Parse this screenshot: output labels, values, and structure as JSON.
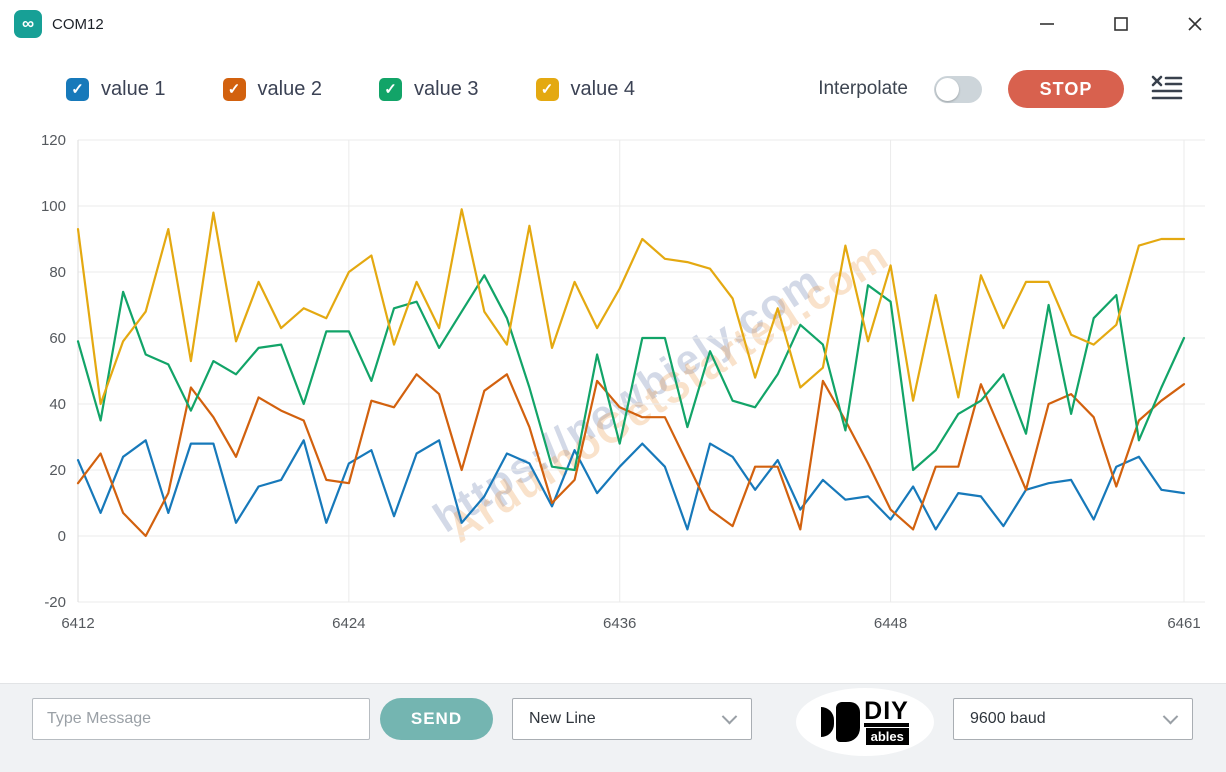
{
  "window": {
    "title": "COM12"
  },
  "toolbar": {
    "legend": [
      {
        "label": "value 1",
        "color": "#1779ba",
        "checked": true
      },
      {
        "label": "value 2",
        "color": "#d2610e",
        "checked": true
      },
      {
        "label": "value 3",
        "color": "#12a468",
        "checked": true
      },
      {
        "label": "value 4",
        "color": "#e4a911",
        "checked": true
      }
    ],
    "interpolate_label": "Interpolate",
    "interpolate_on": false,
    "stop_label": "STOP"
  },
  "chart_data": {
    "type": "line",
    "x_start": 6412,
    "x_ticks": [
      6412,
      6424,
      6436,
      6448,
      6461
    ],
    "y_ticks": [
      -20,
      0,
      20,
      40,
      60,
      80,
      100,
      120
    ],
    "ylim": [
      -20,
      120
    ],
    "grid": true,
    "legend_position": "top",
    "series": [
      {
        "name": "value 1",
        "color": "#1779ba",
        "values": [
          23,
          7,
          24,
          29,
          7,
          28,
          28,
          4,
          15,
          17,
          29,
          4,
          22,
          26,
          6,
          25,
          29,
          4,
          12,
          25,
          22,
          9,
          26,
          13,
          21,
          28,
          21,
          2,
          28,
          24,
          14,
          23,
          8,
          17,
          11,
          12,
          5,
          15,
          2,
          13,
          12,
          3,
          14,
          16,
          17,
          5,
          21,
          24,
          14,
          13
        ]
      },
      {
        "name": "value 2",
        "color": "#d2610e",
        "values": [
          16,
          25,
          7,
          0,
          13,
          45,
          36,
          24,
          42,
          38,
          35,
          17,
          16,
          41,
          39,
          49,
          43,
          20,
          44,
          49,
          33,
          10,
          17,
          47,
          39,
          36,
          36,
          22,
          8,
          3,
          21,
          21,
          2,
          47,
          35,
          22,
          8,
          2,
          21,
          21,
          46,
          30,
          14,
          40,
          43,
          36,
          15,
          35,
          41,
          46
        ]
      },
      {
        "name": "value 3",
        "color": "#12a468",
        "values": [
          59,
          35,
          74,
          55,
          52,
          38,
          53,
          49,
          57,
          58,
          40,
          62,
          62,
          47,
          69,
          71,
          57,
          68,
          79,
          66,
          45,
          21,
          20,
          55,
          28,
          60,
          60,
          33,
          56,
          41,
          39,
          49,
          64,
          58,
          32,
          76,
          71,
          20,
          26,
          37,
          41,
          49,
          31,
          70,
          37,
          66,
          73,
          29,
          45,
          60
        ]
      },
      {
        "name": "value 4",
        "color": "#e4a911",
        "values": [
          93,
          40,
          59,
          68,
          93,
          53,
          98,
          59,
          77,
          63,
          69,
          66,
          80,
          85,
          58,
          77,
          63,
          99,
          68,
          58,
          94,
          57,
          77,
          63,
          75,
          90,
          84,
          83,
          81,
          72,
          48,
          69,
          45,
          51,
          88,
          59,
          82,
          41,
          73,
          42,
          79,
          63,
          77,
          77,
          61,
          58,
          64,
          88,
          90,
          90
        ]
      }
    ],
    "watermarks": [
      "https://newbiely.com",
      "ArduinoGetStarted.com"
    ]
  },
  "bottom_bar": {
    "message_placeholder": "Type Message",
    "send_label": "SEND",
    "line_ending_selected": "New Line",
    "baud_selected": "9600 baud",
    "logo_top": "DIY",
    "logo_bottom": "ables"
  }
}
